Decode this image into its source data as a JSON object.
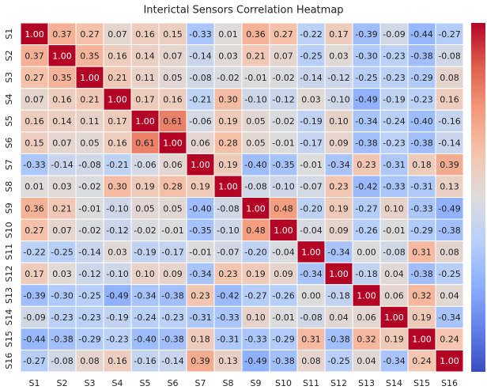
{
  "chart_data": {
    "type": "heatmap",
    "title": "Interictal Sensors Correlation Heatmap",
    "x_categories": [
      "S1",
      "S2",
      "S3",
      "S4",
      "S5",
      "S6",
      "S7",
      "S8",
      "S9",
      "S10",
      "S11",
      "S12",
      "S13",
      "S14",
      "S15",
      "S16"
    ],
    "y_categories": [
      "S1",
      "S2",
      "S3",
      "S4",
      "S5",
      "S6",
      "S7",
      "S8",
      "S9",
      "S10",
      "S11",
      "S12",
      "S13",
      "S14",
      "S15",
      "S16"
    ],
    "colormap": "coolwarm",
    "clim": [
      -1,
      1
    ],
    "colorbar": true,
    "values": [
      [
        1.0,
        0.37,
        0.27,
        0.07,
        0.16,
        0.15,
        -0.33,
        0.01,
        0.36,
        0.27,
        -0.22,
        0.17,
        -0.39,
        -0.09,
        -0.44,
        -0.27
      ],
      [
        0.37,
        1.0,
        0.35,
        0.16,
        0.14,
        0.07,
        -0.14,
        0.03,
        0.21,
        0.07,
        -0.25,
        0.03,
        -0.3,
        -0.23,
        -0.38,
        -0.08
      ],
      [
        0.27,
        0.35,
        1.0,
        0.21,
        0.11,
        0.05,
        -0.08,
        -0.02,
        -0.01,
        -0.02,
        -0.14,
        -0.12,
        -0.25,
        -0.23,
        -0.29,
        0.08
      ],
      [
        0.07,
        0.16,
        0.21,
        1.0,
        0.17,
        0.16,
        -0.21,
        0.3,
        -0.1,
        -0.12,
        0.03,
        -0.1,
        -0.49,
        -0.19,
        -0.23,
        0.16
      ],
      [
        0.16,
        0.14,
        0.11,
        0.17,
        1.0,
        0.61,
        -0.06,
        0.19,
        0.05,
        -0.02,
        -0.19,
        0.1,
        -0.34,
        -0.24,
        -0.4,
        -0.16
      ],
      [
        0.15,
        0.07,
        0.05,
        0.16,
        0.61,
        1.0,
        0.06,
        0.28,
        0.05,
        -0.01,
        -0.17,
        0.09,
        -0.38,
        -0.23,
        -0.38,
        -0.14
      ],
      [
        -0.33,
        -0.14,
        -0.08,
        -0.21,
        -0.06,
        0.06,
        1.0,
        0.19,
        -0.4,
        -0.35,
        -0.01,
        -0.34,
        0.23,
        -0.31,
        0.18,
        0.39
      ],
      [
        0.01,
        0.03,
        -0.02,
        0.3,
        0.19,
        0.28,
        0.19,
        1.0,
        -0.08,
        -0.1,
        -0.07,
        0.23,
        -0.42,
        -0.33,
        -0.31,
        0.13
      ],
      [
        0.36,
        0.21,
        -0.01,
        -0.1,
        0.05,
        0.05,
        -0.4,
        -0.08,
        1.0,
        0.48,
        -0.2,
        0.19,
        -0.27,
        0.1,
        -0.33,
        -0.49
      ],
      [
        0.27,
        0.07,
        -0.02,
        -0.12,
        -0.02,
        -0.01,
        -0.35,
        -0.1,
        0.48,
        1.0,
        -0.04,
        0.09,
        -0.26,
        -0.01,
        -0.29,
        -0.38
      ],
      [
        -0.22,
        -0.25,
        -0.14,
        0.03,
        -0.19,
        -0.17,
        -0.01,
        -0.07,
        -0.2,
        -0.04,
        1.0,
        -0.34,
        0.0,
        -0.08,
        0.31,
        0.08
      ],
      [
        0.17,
        0.03,
        -0.12,
        -0.1,
        0.1,
        0.09,
        -0.34,
        0.23,
        0.19,
        0.09,
        -0.34,
        1.0,
        -0.18,
        0.04,
        -0.38,
        -0.25
      ],
      [
        -0.39,
        -0.3,
        -0.25,
        -0.49,
        -0.34,
        -0.38,
        0.23,
        -0.42,
        -0.27,
        -0.26,
        0.0,
        -0.18,
        1.0,
        0.06,
        0.32,
        0.04
      ],
      [
        -0.09,
        -0.23,
        -0.23,
        -0.19,
        -0.24,
        -0.23,
        -0.31,
        -0.33,
        0.1,
        -0.01,
        -0.08,
        0.04,
        0.06,
        1.0,
        0.19,
        -0.34
      ],
      [
        -0.44,
        -0.38,
        -0.29,
        -0.23,
        -0.4,
        -0.38,
        0.18,
        -0.31,
        -0.33,
        -0.29,
        0.31,
        -0.38,
        0.32,
        0.19,
        1.0,
        0.24
      ],
      [
        -0.27,
        -0.08,
        0.08,
        0.16,
        -0.16,
        -0.14,
        0.39,
        0.13,
        -0.49,
        -0.38,
        0.08,
        -0.25,
        0.04,
        -0.34,
        0.24,
        1.0
      ]
    ],
    "value_labels": [
      [
        "1.00",
        "0.37",
        "0.27",
        "0.07",
        "0.16",
        "0.15",
        "-0.33",
        "0.01",
        "0.36",
        "0.27",
        "-0.22",
        "0.17",
        "-0.39",
        "-0.09",
        "-0.44",
        "-0.27"
      ],
      [
        "0.37",
        "1.00",
        "0.35",
        "0.16",
        "0.14",
        "0.07",
        "-0.14",
        "0.03",
        "0.21",
        "0.07",
        "-0.25",
        "0.03",
        "-0.30",
        "-0.23",
        "-0.38",
        "-0.08"
      ],
      [
        "0.27",
        "0.35",
        "1.00",
        "0.21",
        "0.11",
        "0.05",
        "-0.08",
        "-0.02",
        "-0.01",
        "-0.02",
        "-0.14",
        "-0.12",
        "-0.25",
        "-0.23",
        "-0.29",
        "0.08"
      ],
      [
        "0.07",
        "0.16",
        "0.21",
        "1.00",
        "0.17",
        "0.16",
        "-0.21",
        "0.30",
        "-0.10",
        "-0.12",
        "0.03",
        "-0.10",
        "-0.49",
        "-0.19",
        "-0.23",
        "0.16"
      ],
      [
        "0.16",
        "0.14",
        "0.11",
        "0.17",
        "1.00",
        "0.61",
        "-0.06",
        "0.19",
        "0.05",
        "-0.02",
        "-0.19",
        "0.10",
        "-0.34",
        "-0.24",
        "-0.40",
        "-0.16"
      ],
      [
        "0.15",
        "0.07",
        "0.05",
        "0.16",
        "0.61",
        "1.00",
        "0.06",
        "0.28",
        "0.05",
        "-0.01",
        "-0.17",
        "0.09",
        "-0.38",
        "-0.23",
        "-0.38",
        "-0.14"
      ],
      [
        "-0.33",
        "-0.14",
        "-0.08",
        "-0.21",
        "-0.06",
        "0.06",
        "1.00",
        "0.19",
        "-0.40",
        "-0.35",
        "-0.01",
        "-0.34",
        "0.23",
        "-0.31",
        "0.18",
        "0.39"
      ],
      [
        "0.01",
        "0.03",
        "-0.02",
        "0.30",
        "0.19",
        "0.28",
        "0.19",
        "1.00",
        "-0.08",
        "-0.10",
        "-0.07",
        "0.23",
        "-0.42",
        "-0.33",
        "-0.31",
        "0.13"
      ],
      [
        "0.36",
        "0.21",
        "-0.01",
        "-0.10",
        "0.05",
        "0.05",
        "-0.40",
        "-0.08",
        "1.00",
        "0.48",
        "-0.20",
        "0.19",
        "-0.27",
        "0.10",
        "-0.33",
        "-0.49"
      ],
      [
        "0.27",
        "0.07",
        "-0.02",
        "-0.12",
        "-0.02",
        "-0.01",
        "-0.35",
        "-0.10",
        "0.48",
        "1.00",
        "-0.04",
        "0.09",
        "-0.26",
        "-0.01",
        "-0.29",
        "-0.38"
      ],
      [
        "-0.22",
        "-0.25",
        "-0.14",
        "0.03",
        "-0.19",
        "-0.17",
        "-0.01",
        "-0.07",
        "-0.20",
        "-0.04",
        "1.00",
        "-0.34",
        "0.00",
        "-0.08",
        "0.31",
        "0.08"
      ],
      [
        "0.17",
        "0.03",
        "-0.12",
        "-0.10",
        "0.10",
        "0.09",
        "-0.34",
        "0.23",
        "0.19",
        "0.09",
        "-0.34",
        "1.00",
        "-0.18",
        "0.04",
        "-0.38",
        "-0.25"
      ],
      [
        "-0.39",
        "-0.30",
        "-0.25",
        "-0.49",
        "-0.34",
        "-0.38",
        "0.23",
        "-0.42",
        "-0.27",
        "-0.26",
        "0.00",
        "-0.18",
        "1.00",
        "0.06",
        "0.32",
        "0.04"
      ],
      [
        "-0.09",
        "-0.23",
        "-0.23",
        "-0.19",
        "-0.24",
        "-0.23",
        "-0.31",
        "-0.33",
        "0.10",
        "-0.01",
        "-0.08",
        "0.04",
        "0.06",
        "1.00",
        "0.19",
        "-0.34"
      ],
      [
        "-0.44",
        "-0.38",
        "-0.29",
        "-0.23",
        "-0.40",
        "-0.38",
        "0.18",
        "-0.31",
        "-0.33",
        "-0.29",
        "0.31",
        "-0.38",
        "0.32",
        "0.19",
        "1.00",
        "0.24"
      ],
      [
        "-0.27",
        "-0.08",
        "0.08",
        "0.16",
        "-0.16",
        "-0.14",
        "0.39",
        "0.13",
        "-0.49",
        "-0.38",
        "0.08",
        "-0.25",
        "0.04",
        "-0.34",
        "0.24",
        "1.00"
      ]
    ]
  }
}
